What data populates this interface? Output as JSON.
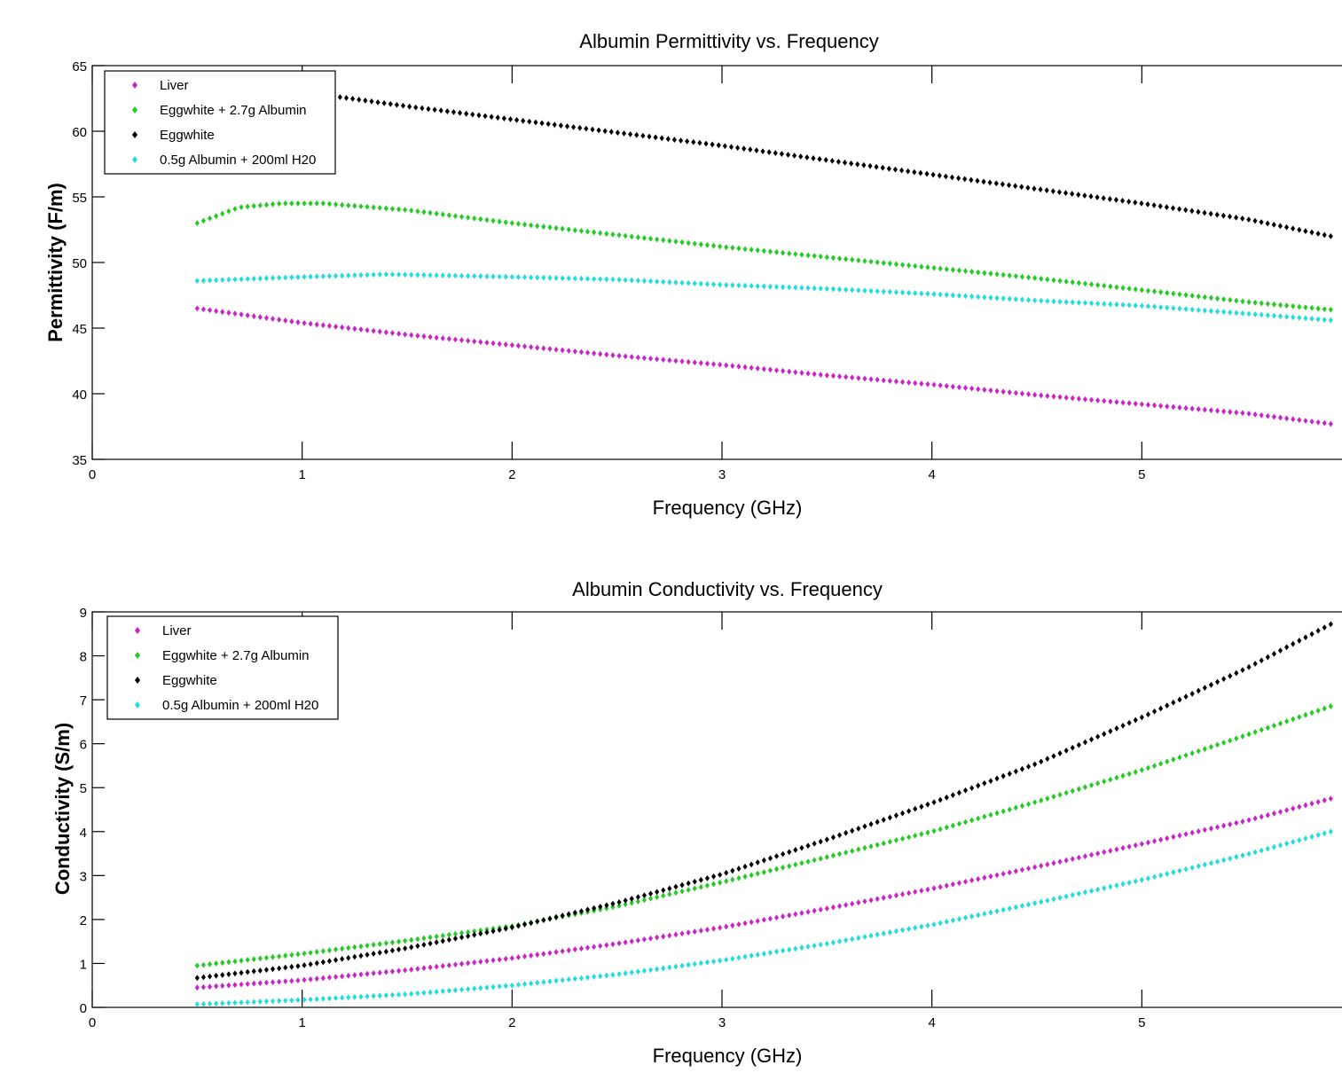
{
  "chart_data": [
    {
      "type": "scatter",
      "title": "Albumin Permittivity vs. Frequency",
      "xlabel": "Frequency (GHz)",
      "ylabel": "Permittivity (F/m)",
      "xlim": [
        0,
        6
      ],
      "ylim": [
        35,
        65
      ],
      "x_ticks": [
        0,
        1,
        2,
        3,
        4,
        5
      ],
      "y_ticks": [
        35,
        40,
        45,
        50,
        55,
        60,
        65
      ],
      "grid": false,
      "legend_position": "top-left",
      "marker": "diamond",
      "series": [
        {
          "name": "Liver",
          "color": "#cc22cc",
          "x": [
            0.5,
            1.0,
            1.5,
            2.0,
            2.5,
            3.0,
            3.5,
            4.0,
            4.5,
            5.0,
            5.5,
            5.9
          ],
          "y": [
            46.5,
            45.4,
            44.5,
            43.7,
            42.9,
            42.2,
            41.4,
            40.7,
            39.9,
            39.2,
            38.5,
            37.7
          ]
        },
        {
          "name": "Eggwhite + 2.7g Albumin",
          "color": "#22cc22",
          "x": [
            0.5,
            0.7,
            0.9,
            1.1,
            1.5,
            2.0,
            2.5,
            3.0,
            3.5,
            4.0,
            4.5,
            5.0,
            5.5,
            5.9
          ],
          "y": [
            53.0,
            54.2,
            54.5,
            54.5,
            54.0,
            53.0,
            52.1,
            51.2,
            50.4,
            49.6,
            48.8,
            47.9,
            47.0,
            46.4
          ]
        },
        {
          "name": "Eggwhite",
          "color": "#000000",
          "x": [
            1.0,
            1.5,
            2.0,
            2.5,
            3.0,
            3.5,
            4.0,
            4.5,
            5.0,
            5.5,
            5.9
          ],
          "y": [
            63.0,
            61.9,
            60.9,
            59.9,
            58.9,
            57.8,
            56.7,
            55.6,
            54.5,
            53.3,
            52.0
          ]
        },
        {
          "name": "0.5g Albumin + 200ml H20",
          "color": "#22dddd",
          "x": [
            0.5,
            1.0,
            1.4,
            2.0,
            2.5,
            3.0,
            3.5,
            4.0,
            4.5,
            5.0,
            5.5,
            5.9
          ],
          "y": [
            48.6,
            48.9,
            49.1,
            48.9,
            48.7,
            48.3,
            48.0,
            47.6,
            47.1,
            46.7,
            46.1,
            45.6
          ]
        }
      ]
    },
    {
      "type": "scatter",
      "title": "Albumin Conductivity vs. Frequency",
      "xlabel": "Frequency (GHz)",
      "ylabel": "Conductivity (S/m)",
      "xlim": [
        0,
        6
      ],
      "ylim": [
        0,
        9
      ],
      "x_ticks": [
        0,
        1,
        2,
        3,
        4,
        5
      ],
      "y_ticks": [
        0,
        1,
        2,
        3,
        4,
        5,
        6,
        7,
        8,
        9
      ],
      "grid": false,
      "legend_position": "top-left",
      "marker": "diamond",
      "series": [
        {
          "name": "Liver",
          "color": "#cc22cc",
          "x": [
            0.5,
            1.0,
            1.5,
            2.0,
            2.5,
            3.0,
            3.5,
            4.0,
            4.5,
            5.0,
            5.5,
            5.9
          ],
          "y": [
            0.45,
            0.62,
            0.85,
            1.12,
            1.45,
            1.82,
            2.25,
            2.7,
            3.2,
            3.72,
            4.25,
            4.75
          ]
        },
        {
          "name": "Eggwhite + 2.7g Albumin",
          "color": "#22cc22",
          "x": [
            0.5,
            1.0,
            1.5,
            2.0,
            2.5,
            3.0,
            3.5,
            4.0,
            4.5,
            5.0,
            5.5,
            5.9
          ],
          "y": [
            0.95,
            1.22,
            1.52,
            1.85,
            2.3,
            2.85,
            3.42,
            4.0,
            4.68,
            5.4,
            6.2,
            6.85
          ]
        },
        {
          "name": "Eggwhite",
          "color": "#000000",
          "x": [
            0.5,
            1.0,
            1.5,
            2.0,
            2.5,
            3.0,
            3.5,
            4.0,
            4.5,
            5.0,
            5.5,
            5.9
          ],
          "y": [
            0.67,
            0.95,
            1.35,
            1.82,
            2.38,
            3.03,
            3.82,
            4.65,
            5.55,
            6.6,
            7.72,
            8.72
          ]
        },
        {
          "name": "0.5g Albumin + 200ml H20",
          "color": "#22dddd",
          "x": [
            0.5,
            1.0,
            1.5,
            2.0,
            2.5,
            3.0,
            3.5,
            4.0,
            4.5,
            5.0,
            5.5,
            5.9
          ],
          "y": [
            0.07,
            0.17,
            0.3,
            0.5,
            0.75,
            1.07,
            1.45,
            1.88,
            2.38,
            2.9,
            3.48,
            4.0
          ]
        }
      ]
    }
  ]
}
